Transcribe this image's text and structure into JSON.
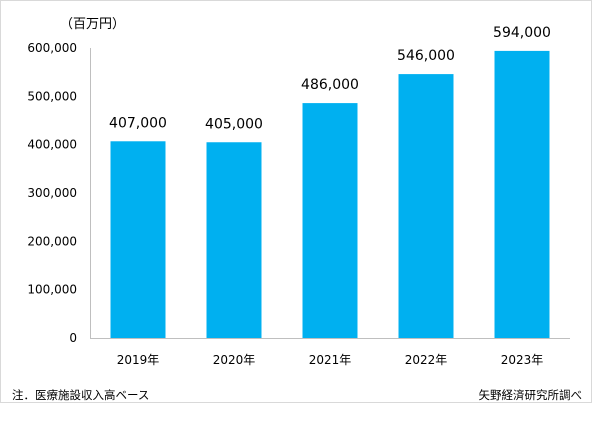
{
  "chart_data": {
    "type": "bar",
    "unit_label": "（百万円）",
    "categories": [
      "2019年",
      "2020年",
      "2021年",
      "2022年",
      "2023年"
    ],
    "values": [
      407000,
      405000,
      486000,
      546000,
      594000
    ],
    "data_labels": [
      "407,000",
      "405,000",
      "486,000",
      "546,000",
      "594,000"
    ],
    "yticks": [
      "0",
      "100,000",
      "200,000",
      "300,000",
      "400,000",
      "500,000",
      "600,000"
    ],
    "ylim": [
      0,
      600000
    ],
    "bar_color": "#00b0f0",
    "grid": false,
    "legend": "none"
  },
  "footer": {
    "note": "注．医療施設収入高ベース",
    "source": "矢野経済研究所調べ"
  }
}
